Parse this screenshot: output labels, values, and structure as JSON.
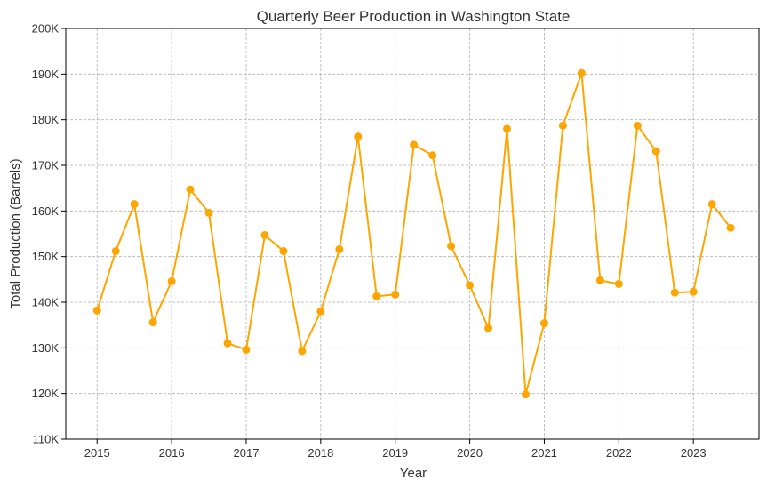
{
  "chart_data": {
    "type": "line",
    "title": "Quarterly Beer Production in Washington State",
    "xlabel": "Year",
    "ylabel": "Total Production (Barrels)",
    "xlim": [
      2014.58,
      2023.88
    ],
    "ylim": [
      110000,
      200000
    ],
    "x_ticks": [
      2015,
      2016,
      2017,
      2018,
      2019,
      2020,
      2021,
      2022,
      2023
    ],
    "x_tick_labels": [
      "2015",
      "2016",
      "2017",
      "2018",
      "2019",
      "2020",
      "2021",
      "2022",
      "2023"
    ],
    "y_ticks": [
      110000,
      120000,
      130000,
      140000,
      150000,
      160000,
      170000,
      180000,
      190000,
      200000
    ],
    "y_tick_labels": [
      "110K",
      "120K",
      "130K",
      "140K",
      "150K",
      "160K",
      "170K",
      "180K",
      "190K",
      "200K"
    ],
    "grid": true,
    "color": "#FFA500",
    "series": [
      {
        "name": "",
        "x": [
          2015,
          2015.25,
          2015.5,
          2015.75,
          2016,
          2016.25,
          2016.5,
          2016.75,
          2017,
          2017.25,
          2017.5,
          2017.75,
          2018,
          2018.25,
          2018.5,
          2018.75,
          2019,
          2019.25,
          2019.5,
          2019.75,
          2020,
          2020.25,
          2020.5,
          2020.75,
          2021,
          2021.25,
          2021.5,
          2021.75,
          2022,
          2022.25,
          2022.5,
          2022.75,
          2023,
          2023.25,
          2023.5
        ],
        "values": [
          138200,
          151200,
          161500,
          135600,
          144600,
          164700,
          159600,
          131000,
          129600,
          154700,
          151200,
          129300,
          138000,
          151600,
          176300,
          141300,
          141700,
          174500,
          172200,
          152300,
          143700,
          134300,
          178000,
          119800,
          135400,
          178700,
          190200,
          144800,
          144000,
          178700,
          173100,
          142100,
          142300,
          161500,
          156300
        ]
      }
    ]
  }
}
